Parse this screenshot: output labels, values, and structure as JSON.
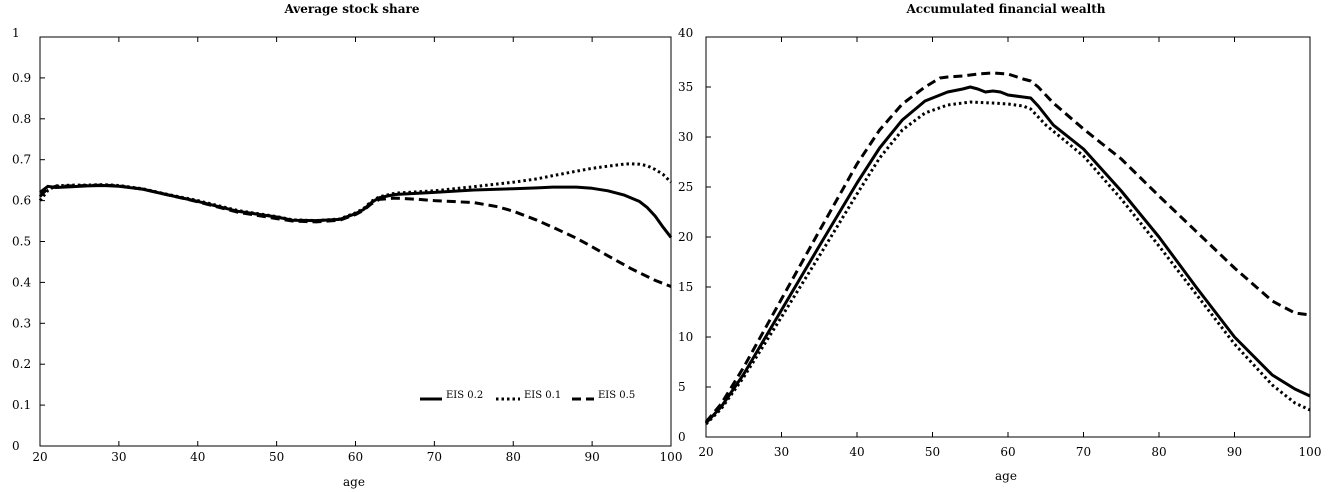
{
  "chart_data": [
    {
      "type": "line",
      "title": "Average stock share",
      "xlabel": "age",
      "ylabel": "",
      "xlim": [
        20,
        100
      ],
      "ylim": [
        0,
        1
      ],
      "xticks": [
        20,
        30,
        40,
        50,
        60,
        70,
        80,
        90,
        100
      ],
      "yticks": [
        0,
        0.1,
        0.2,
        0.3,
        0.4,
        0.5,
        0.6,
        0.7,
        0.8,
        0.9,
        1
      ],
      "ytick_labels": [
        "0",
        "0.1",
        "0.2",
        "0.3",
        "0.4",
        "0.5",
        "0.6",
        "0.7",
        "0.8",
        "0.9",
        "1"
      ],
      "legend": {
        "placement": "bottom-right"
      },
      "grid": false,
      "series": [
        {
          "name": "EIS 0.2",
          "style": "solid",
          "color": "#000000",
          "x": [
            20,
            21,
            22,
            24,
            26,
            28,
            30,
            33,
            36,
            40,
            45,
            50,
            52,
            55,
            58,
            60,
            61,
            62,
            63,
            65,
            70,
            75,
            80,
            83,
            85,
            88,
            90,
            92,
            94,
            96,
            97,
            98,
            99,
            100
          ],
          "y": [
            0.62,
            0.635,
            0.632,
            0.634,
            0.636,
            0.637,
            0.635,
            0.628,
            0.615,
            0.598,
            0.574,
            0.56,
            0.552,
            0.551,
            0.554,
            0.568,
            0.578,
            0.595,
            0.607,
            0.615,
            0.62,
            0.626,
            0.629,
            0.631,
            0.633,
            0.633,
            0.63,
            0.624,
            0.614,
            0.598,
            0.583,
            0.562,
            0.535,
            0.51
          ]
        },
        {
          "name": "EIS 0.1",
          "style": "dotted",
          "color": "#000000",
          "x": [
            20,
            21,
            22,
            24,
            26,
            28,
            30,
            33,
            36,
            40,
            45,
            50,
            52,
            55,
            58,
            60,
            61,
            62,
            63,
            65,
            70,
            75,
            80,
            83,
            85,
            88,
            90,
            92,
            94,
            95,
            96,
            97,
            98,
            99,
            100
          ],
          "y": [
            0.6,
            0.625,
            0.636,
            0.638,
            0.638,
            0.639,
            0.637,
            0.629,
            0.616,
            0.6,
            0.576,
            0.561,
            0.553,
            0.551,
            0.555,
            0.57,
            0.58,
            0.598,
            0.609,
            0.618,
            0.624,
            0.634,
            0.645,
            0.653,
            0.661,
            0.672,
            0.679,
            0.684,
            0.689,
            0.69,
            0.689,
            0.685,
            0.676,
            0.664,
            0.645
          ]
        },
        {
          "name": "EIS 0.5",
          "style": "dashed",
          "color": "#000000",
          "x": [
            20,
            21,
            22,
            24,
            26,
            28,
            30,
            33,
            36,
            40,
            45,
            50,
            52,
            55,
            58,
            60,
            61,
            62,
            63,
            65,
            68,
            70,
            75,
            78,
            80,
            83,
            85,
            88,
            90,
            92,
            95,
            98,
            100
          ],
          "y": [
            0.61,
            0.63,
            0.635,
            0.636,
            0.637,
            0.638,
            0.636,
            0.628,
            0.615,
            0.597,
            0.572,
            0.556,
            0.55,
            0.548,
            0.552,
            0.566,
            0.576,
            0.592,
            0.603,
            0.606,
            0.603,
            0.6,
            0.595,
            0.585,
            0.574,
            0.552,
            0.535,
            0.508,
            0.487,
            0.465,
            0.433,
            0.405,
            0.39
          ]
        }
      ]
    },
    {
      "type": "line",
      "title": "Accumulated financial wealth",
      "xlabel": "age",
      "ylabel": "",
      "xlim": [
        20,
        100
      ],
      "ylim": [
        0,
        40
      ],
      "xticks": [
        20,
        30,
        40,
        50,
        60,
        70,
        80,
        90,
        100
      ],
      "yticks": [
        0,
        5,
        10,
        15,
        20,
        25,
        30,
        35,
        40
      ],
      "ytick_labels": [
        "0",
        "5",
        "10",
        "15",
        "20",
        "25",
        "30",
        "35",
        "40"
      ],
      "grid": false,
      "series": [
        {
          "name": "EIS 0.2",
          "style": "solid",
          "color": "#000000",
          "x": [
            20,
            22,
            25,
            30,
            35,
            40,
            43,
            46,
            49,
            52,
            54,
            55,
            56,
            57,
            58,
            59,
            60,
            62,
            63,
            64,
            66,
            70,
            75,
            80,
            85,
            90,
            95,
            98,
            100
          ],
          "y": [
            1.4,
            3.0,
            6.3,
            12.7,
            19.1,
            25.4,
            28.9,
            31.7,
            33.6,
            34.5,
            34.8,
            35.0,
            34.8,
            34.5,
            34.6,
            34.5,
            34.2,
            34.0,
            33.9,
            33.1,
            31.2,
            28.8,
            24.6,
            20.0,
            14.9,
            10.0,
            6.2,
            4.8,
            4.1
          ]
        },
        {
          "name": "EIS 0.1",
          "style": "dotted",
          "color": "#000000",
          "x": [
            20,
            22,
            25,
            30,
            35,
            40,
            43,
            46,
            49,
            52,
            55,
            58,
            60,
            62,
            63,
            65,
            70,
            75,
            80,
            85,
            90,
            95,
            98,
            100
          ],
          "y": [
            1.3,
            2.8,
            6.0,
            12.0,
            18.1,
            24.3,
            27.9,
            30.7,
            32.4,
            33.2,
            33.5,
            33.4,
            33.3,
            33.1,
            32.8,
            31.2,
            28.1,
            23.8,
            19.1,
            14.2,
            9.3,
            5.2,
            3.4,
            2.7
          ]
        },
        {
          "name": "EIS 0.5",
          "style": "dashed",
          "color": "#000000",
          "x": [
            20,
            22,
            25,
            30,
            35,
            40,
            43,
            46,
            49,
            51,
            52,
            54,
            56,
            58,
            60,
            62,
            63,
            64,
            66,
            70,
            75,
            80,
            85,
            90,
            95,
            98,
            100
          ],
          "y": [
            1.5,
            3.3,
            7.0,
            13.8,
            20.6,
            27.3,
            30.7,
            33.3,
            35.0,
            35.9,
            36.0,
            36.1,
            36.3,
            36.4,
            36.3,
            35.8,
            35.6,
            35.0,
            33.4,
            30.8,
            27.8,
            24.1,
            20.5,
            16.9,
            13.6,
            12.4,
            12.2
          ]
        }
      ]
    }
  ]
}
